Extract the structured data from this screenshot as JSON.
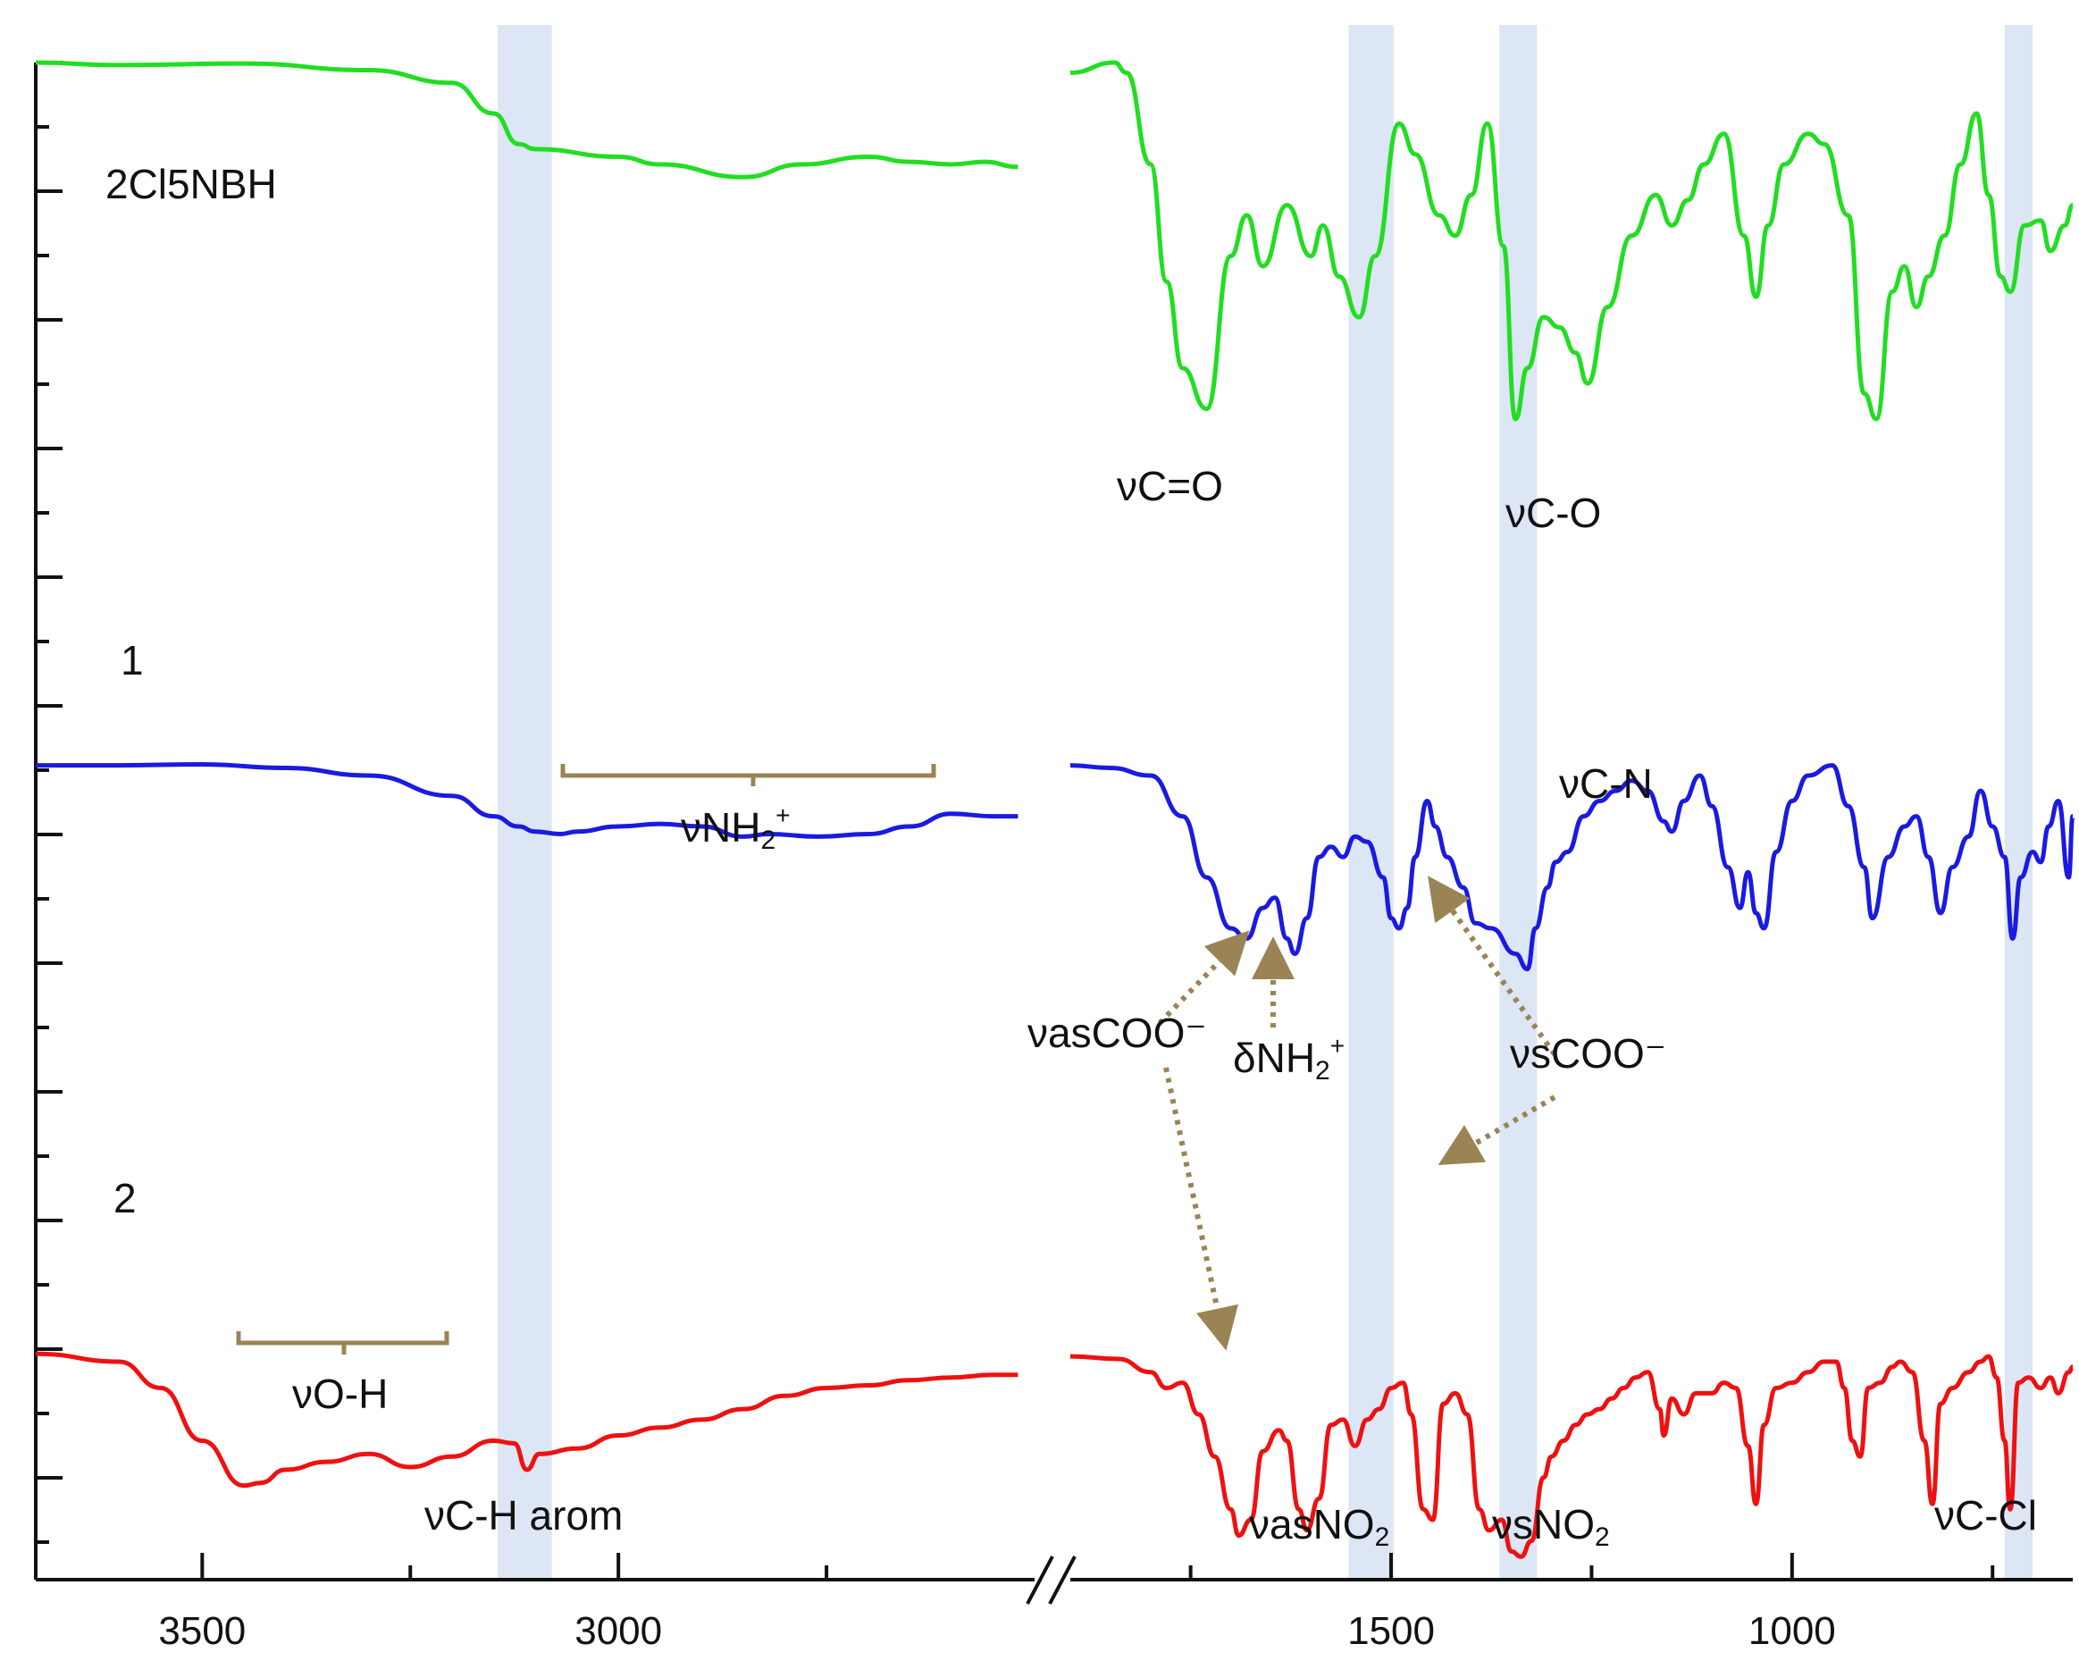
{
  "chart_data": {
    "type": "line",
    "title": "",
    "xlabel": "",
    "ylabel": "",
    "x_axis_break": true,
    "x_tick_labels": [
      "3500",
      "3000",
      "1500",
      "1000"
    ],
    "xlim_left_panel": [
      3700,
      2500
    ],
    "xlim_right_panel": [
      1900,
      650
    ],
    "y_axis": "transmittance (offset traces, no numeric labels)",
    "series_labels": {
      "green": "2Cl5NBH",
      "blue": "1",
      "red": "2"
    },
    "highlight_bands": [
      {
        "label": "νC-H arom",
        "x_range": [
          3145,
          3080
        ]
      },
      {
        "label": "ν(as)NO2",
        "x_range": [
          1553,
          1497
        ]
      },
      {
        "label": "ν(s)NO2",
        "x_range": [
          1365,
          1318
        ]
      },
      {
        "label": "νC-Cl",
        "x_range": [
          735,
          700
        ]
      }
    ],
    "annotations": {
      "vCO_double": "νC=O",
      "vCO_single": "νC-O",
      "vCN": "νC-N",
      "vNH2": "νNH",
      "vOH": "νO-H",
      "vCH": "νC-H arom",
      "dNH2": "δNH",
      "vasCOO": "νasCOO⁻",
      "vsCOO": "νsCOO⁻",
      "vasNO2": "νasNO",
      "vsNO2": "νsNO",
      "vCCl": "νC-Cl",
      "sub_as": "as",
      "sub_s": "s",
      "sub_2": "2",
      "sup_plus": "+"
    },
    "series": [
      {
        "name": "2Cl5NBH",
        "color": "#22dd22",
        "points_left": [
          [
            3700,
            1.0
          ],
          [
            3600,
            0.995
          ],
          [
            3450,
            0.998
          ],
          [
            3300,
            0.985
          ],
          [
            3200,
            0.96
          ],
          [
            3150,
            0.9
          ],
          [
            3120,
            0.84
          ],
          [
            3100,
            0.83
          ],
          [
            3000,
            0.815
          ],
          [
            2950,
            0.8
          ],
          [
            2850,
            0.775
          ],
          [
            2780,
            0.8
          ],
          [
            2700,
            0.815
          ],
          [
            2650,
            0.805
          ],
          [
            2600,
            0.8
          ],
          [
            2560,
            0.805
          ],
          [
            2520,
            0.795
          ]
        ],
        "points_right": [
          [
            1900,
            0.98
          ],
          [
            1845,
            1.0
          ],
          [
            1830,
            0.98
          ],
          [
            1800,
            0.8
          ],
          [
            1780,
            0.57
          ],
          [
            1760,
            0.4
          ],
          [
            1730,
            0.32
          ],
          [
            1700,
            0.62
          ],
          [
            1680,
            0.7
          ],
          [
            1660,
            0.6
          ],
          [
            1630,
            0.72
          ],
          [
            1600,
            0.62
          ],
          [
            1585,
            0.68
          ],
          [
            1565,
            0.58
          ],
          [
            1540,
            0.5
          ],
          [
            1520,
            0.62
          ],
          [
            1490,
            0.88
          ],
          [
            1470,
            0.82
          ],
          [
            1440,
            0.7
          ],
          [
            1420,
            0.66
          ],
          [
            1400,
            0.74
          ],
          [
            1380,
            0.88
          ],
          [
            1360,
            0.64
          ],
          [
            1345,
            0.3
          ],
          [
            1330,
            0.4
          ],
          [
            1310,
            0.5
          ],
          [
            1290,
            0.48
          ],
          [
            1270,
            0.43
          ],
          [
            1255,
            0.37
          ],
          [
            1230,
            0.52
          ],
          [
            1200,
            0.66
          ],
          [
            1170,
            0.74
          ],
          [
            1150,
            0.68
          ],
          [
            1130,
            0.73
          ],
          [
            1110,
            0.8
          ],
          [
            1085,
            0.86
          ],
          [
            1060,
            0.66
          ],
          [
            1045,
            0.54
          ],
          [
            1030,
            0.68
          ],
          [
            1010,
            0.8
          ],
          [
            980,
            0.86
          ],
          [
            960,
            0.84
          ],
          [
            930,
            0.7
          ],
          [
            910,
            0.35
          ],
          [
            895,
            0.3
          ],
          [
            875,
            0.55
          ],
          [
            860,
            0.6
          ],
          [
            845,
            0.52
          ],
          [
            830,
            0.58
          ],
          [
            810,
            0.66
          ],
          [
            790,
            0.8
          ],
          [
            770,
            0.9
          ],
          [
            755,
            0.74
          ],
          [
            740,
            0.58
          ],
          [
            728,
            0.55
          ],
          [
            710,
            0.68
          ],
          [
            690,
            0.69
          ],
          [
            678,
            0.63
          ],
          [
            660,
            0.68
          ],
          [
            650,
            0.72
          ]
        ]
      },
      {
        "name": "1",
        "color": "#1a1ae0",
        "points_left": [
          [
            3700,
            0.62
          ],
          [
            3600,
            0.62
          ],
          [
            3500,
            0.622
          ],
          [
            3400,
            0.615
          ],
          [
            3300,
            0.6
          ],
          [
            3200,
            0.56
          ],
          [
            3150,
            0.52
          ],
          [
            3120,
            0.5
          ],
          [
            3100,
            0.49
          ],
          [
            3070,
            0.485
          ],
          [
            3050,
            0.49
          ],
          [
            3000,
            0.5
          ],
          [
            2950,
            0.505
          ],
          [
            2900,
            0.5
          ],
          [
            2850,
            0.48
          ],
          [
            2820,
            0.485
          ],
          [
            2760,
            0.48
          ],
          [
            2700,
            0.485
          ],
          [
            2650,
            0.5
          ],
          [
            2600,
            0.525
          ],
          [
            2550,
            0.52
          ],
          [
            2520,
            0.52
          ]
        ],
        "points_right": [
          [
            1900,
            0.62
          ],
          [
            1850,
            0.615
          ],
          [
            1800,
            0.6
          ],
          [
            1760,
            0.52
          ],
          [
            1730,
            0.4
          ],
          [
            1700,
            0.3
          ],
          [
            1680,
            0.28
          ],
          [
            1660,
            0.34
          ],
          [
            1645,
            0.36
          ],
          [
            1630,
            0.28
          ],
          [
            1620,
            0.25
          ],
          [
            1605,
            0.32
          ],
          [
            1590,
            0.44
          ],
          [
            1575,
            0.46
          ],
          [
            1560,
            0.44
          ],
          [
            1545,
            0.48
          ],
          [
            1530,
            0.47
          ],
          [
            1510,
            0.4
          ],
          [
            1500,
            0.32
          ],
          [
            1490,
            0.3
          ],
          [
            1480,
            0.34
          ],
          [
            1470,
            0.44
          ],
          [
            1455,
            0.55
          ],
          [
            1445,
            0.5
          ],
          [
            1430,
            0.44
          ],
          [
            1410,
            0.38
          ],
          [
            1395,
            0.31
          ],
          [
            1375,
            0.3
          ],
          [
            1345,
            0.25
          ],
          [
            1330,
            0.22
          ],
          [
            1320,
            0.3
          ],
          [
            1305,
            0.38
          ],
          [
            1295,
            0.43
          ],
          [
            1280,
            0.45
          ],
          [
            1260,
            0.52
          ],
          [
            1240,
            0.55
          ],
          [
            1220,
            0.57
          ],
          [
            1200,
            0.59
          ],
          [
            1180,
            0.57
          ],
          [
            1160,
            0.51
          ],
          [
            1150,
            0.49
          ],
          [
            1135,
            0.55
          ],
          [
            1115,
            0.6
          ],
          [
            1100,
            0.54
          ],
          [
            1080,
            0.42
          ],
          [
            1065,
            0.34
          ],
          [
            1055,
            0.41
          ],
          [
            1045,
            0.33
          ],
          [
            1035,
            0.3
          ],
          [
            1020,
            0.45
          ],
          [
            1000,
            0.55
          ],
          [
            980,
            0.6
          ],
          [
            950,
            0.62
          ],
          [
            930,
            0.54
          ],
          [
            910,
            0.42
          ],
          [
            900,
            0.32
          ],
          [
            880,
            0.44
          ],
          [
            860,
            0.5
          ],
          [
            845,
            0.52
          ],
          [
            830,
            0.44
          ],
          [
            815,
            0.33
          ],
          [
            800,
            0.42
          ],
          [
            780,
            0.48
          ],
          [
            765,
            0.57
          ],
          [
            750,
            0.5
          ],
          [
            735,
            0.44
          ],
          [
            725,
            0.28
          ],
          [
            715,
            0.4
          ],
          [
            700,
            0.45
          ],
          [
            690,
            0.43
          ],
          [
            680,
            0.5
          ],
          [
            668,
            0.55
          ],
          [
            655,
            0.4
          ],
          [
            650,
            0.52
          ]
        ]
      },
      {
        "name": "2",
        "color": "#ee1111",
        "points_left": [
          [
            3700,
            0.415
          ],
          [
            3600,
            0.4
          ],
          [
            3550,
            0.35
          ],
          [
            3500,
            0.25
          ],
          [
            3450,
            0.165
          ],
          [
            3430,
            0.17
          ],
          [
            3400,
            0.195
          ],
          [
            3350,
            0.21
          ],
          [
            3300,
            0.225
          ],
          [
            3250,
            0.2
          ],
          [
            3200,
            0.22
          ],
          [
            3150,
            0.25
          ],
          [
            3125,
            0.245
          ],
          [
            3110,
            0.195
          ],
          [
            3095,
            0.225
          ],
          [
            3050,
            0.235
          ],
          [
            3000,
            0.26
          ],
          [
            2950,
            0.275
          ],
          [
            2900,
            0.29
          ],
          [
            2850,
            0.31
          ],
          [
            2800,
            0.335
          ],
          [
            2750,
            0.35
          ],
          [
            2700,
            0.355
          ],
          [
            2650,
            0.365
          ],
          [
            2600,
            0.37
          ],
          [
            2550,
            0.375
          ],
          [
            2520,
            0.375
          ]
        ],
        "points_right": [
          [
            1900,
            0.41
          ],
          [
            1840,
            0.405
          ],
          [
            1800,
            0.38
          ],
          [
            1780,
            0.35
          ],
          [
            1760,
            0.36
          ],
          [
            1740,
            0.3
          ],
          [
            1720,
            0.22
          ],
          [
            1700,
            0.12
          ],
          [
            1690,
            0.07
          ],
          [
            1675,
            0.1
          ],
          [
            1660,
            0.23
          ],
          [
            1640,
            0.27
          ],
          [
            1630,
            0.25
          ],
          [
            1615,
            0.12
          ],
          [
            1605,
            0.08
          ],
          [
            1590,
            0.14
          ],
          [
            1575,
            0.28
          ],
          [
            1560,
            0.29
          ],
          [
            1545,
            0.24
          ],
          [
            1530,
            0.29
          ],
          [
            1515,
            0.31
          ],
          [
            1500,
            0.35
          ],
          [
            1485,
            0.36
          ],
          [
            1475,
            0.3
          ],
          [
            1460,
            0.12
          ],
          [
            1448,
            0.1
          ],
          [
            1435,
            0.32
          ],
          [
            1420,
            0.34
          ],
          [
            1405,
            0.3
          ],
          [
            1390,
            0.12
          ],
          [
            1378,
            0.08
          ],
          [
            1362,
            0.1
          ],
          [
            1350,
            0.04
          ],
          [
            1338,
            0.03
          ],
          [
            1325,
            0.06
          ],
          [
            1310,
            0.18
          ],
          [
            1300,
            0.22
          ],
          [
            1285,
            0.25
          ],
          [
            1270,
            0.28
          ],
          [
            1255,
            0.3
          ],
          [
            1240,
            0.31
          ],
          [
            1225,
            0.33
          ],
          [
            1210,
            0.35
          ],
          [
            1195,
            0.37
          ],
          [
            1180,
            0.38
          ],
          [
            1165,
            0.31
          ],
          [
            1160,
            0.26
          ],
          [
            1150,
            0.33
          ],
          [
            1135,
            0.3
          ],
          [
            1120,
            0.34
          ],
          [
            1100,
            0.34
          ],
          [
            1085,
            0.36
          ],
          [
            1070,
            0.35
          ],
          [
            1055,
            0.24
          ],
          [
            1045,
            0.13
          ],
          [
            1035,
            0.28
          ],
          [
            1020,
            0.35
          ],
          [
            1000,
            0.36
          ],
          [
            980,
            0.38
          ],
          [
            960,
            0.4
          ],
          [
            945,
            0.4
          ],
          [
            935,
            0.35
          ],
          [
            925,
            0.25
          ],
          [
            915,
            0.22
          ],
          [
            905,
            0.35
          ],
          [
            890,
            0.36
          ],
          [
            875,
            0.39
          ],
          [
            865,
            0.4
          ],
          [
            850,
            0.38
          ],
          [
            835,
            0.25
          ],
          [
            825,
            0.13
          ],
          [
            815,
            0.32
          ],
          [
            800,
            0.35
          ],
          [
            780,
            0.38
          ],
          [
            765,
            0.4
          ],
          [
            755,
            0.41
          ],
          [
            745,
            0.37
          ],
          [
            735,
            0.25
          ],
          [
            728,
            0.12
          ],
          [
            718,
            0.36
          ],
          [
            705,
            0.37
          ],
          [
            690,
            0.35
          ],
          [
            678,
            0.37
          ],
          [
            668,
            0.34
          ],
          [
            655,
            0.38
          ],
          [
            650,
            0.39
          ]
        ]
      }
    ]
  }
}
